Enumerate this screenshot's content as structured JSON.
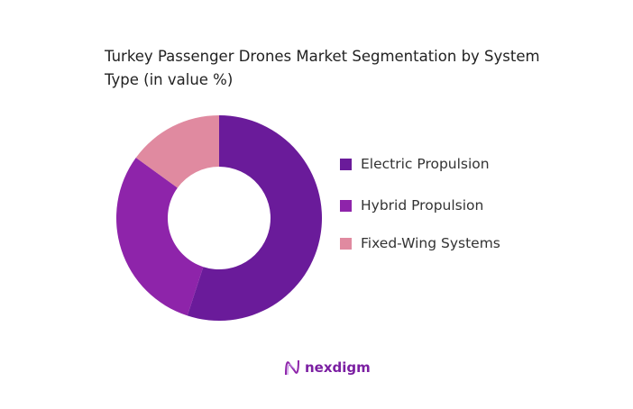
{
  "chart_data": {
    "type": "pie",
    "donut": true,
    "title": "Turkey Passenger Drones Market Segmentation by System Type (in value %)",
    "categories": [
      "Electric Propulsion",
      "Hybrid Propulsion",
      "Fixed-Wing Systems"
    ],
    "values": [
      55,
      30,
      15
    ],
    "colors": [
      "#6a1b9a",
      "#8e24aa",
      "#e08aa0"
    ],
    "legend_position": "right"
  },
  "logo": {
    "text": "nexdigm"
  }
}
